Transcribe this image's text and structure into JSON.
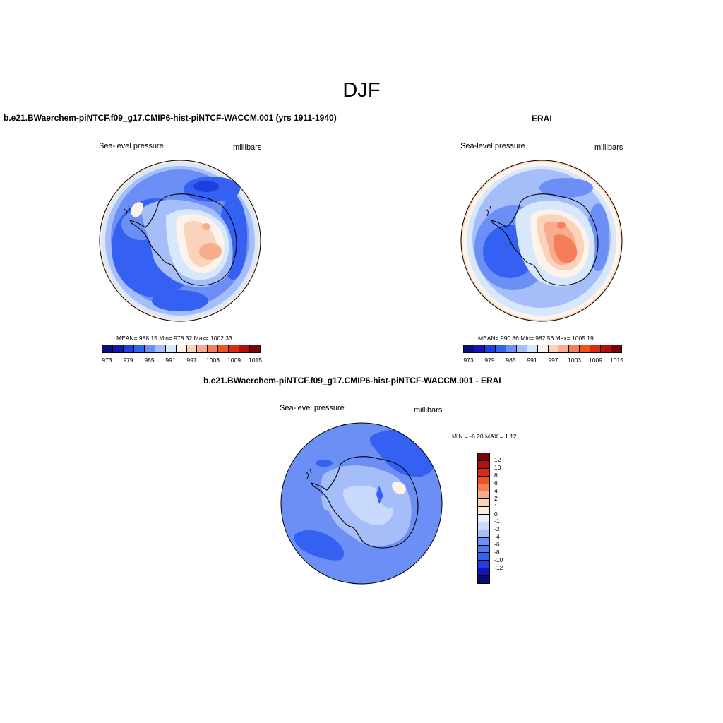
{
  "figure": {
    "season": "DJF"
  },
  "panels": [
    {
      "title": "b.e21.BWaerchem-piNTCF.f09_g17.CMIP6-hist-piNTCF-WACCM.001 (yrs 1911-1940)",
      "left_label": "Sea-level pressure",
      "right_label": "millibars",
      "stats": "MEAN= 988.15  Min= 978.32  Max= 1002.33"
    },
    {
      "title": "ERAI",
      "left_label": "Sea-level pressure",
      "right_label": "millibars",
      "stats": "MEAN= 990.86  Min= 982.56  Max= 1005.19"
    },
    {
      "title": "b.e21.BWaerchem-piNTCF.f09_g17.CMIP6-hist-piNTCF-WACCM.001 - ERAI",
      "left_label": "Sea-level pressure",
      "right_label": "millibars",
      "stats": "MIN =  -6.20 MAX =   1.12"
    }
  ],
  "colorbars": {
    "abs_colors": [
      "#0b0b7a",
      "#1414b4",
      "#1f3ee0",
      "#3561f2",
      "#6b8ff5",
      "#a5befa",
      "#d8e8fc",
      "#fdf3ea",
      "#fbd3bc",
      "#f8ab8d",
      "#f47e58",
      "#ee5225",
      "#d92a13",
      "#b20f0f",
      "#7a0505"
    ],
    "abs_ticks": [
      "973",
      "979",
      "985",
      "991",
      "997",
      "1003",
      "1009",
      "1015"
    ],
    "diff_colors": [
      "#0b0b7a",
      "#1414b4",
      "#1f3ee0",
      "#3561f2",
      "#4f79f3",
      "#6b8ff5",
      "#a5befa",
      "#c8d9fb",
      "#e6f0fd",
      "#fdecdc",
      "#fbd3bc",
      "#f8ab8d",
      "#f47e58",
      "#ee5225",
      "#d92a13",
      "#b20f0f",
      "#7a0505"
    ],
    "diff_ticks": [
      "12",
      "10",
      "8",
      "6",
      "4",
      "2",
      "1",
      "0",
      "-1",
      "-2",
      "-4",
      "-6",
      "-8",
      "-10",
      "-12"
    ]
  },
  "map_colors": {
    "ocean_edge_light": "#fde6da",
    "land_outline": "#000000"
  }
}
